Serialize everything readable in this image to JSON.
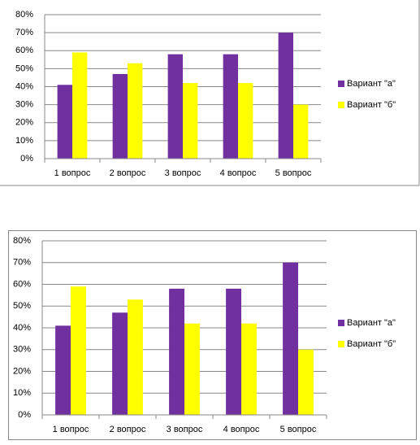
{
  "chart_data": [
    {
      "type": "bar",
      "categories": [
        "1 вопрос",
        "2 вопрос",
        "3 вопрос",
        "4 вопрос",
        "5 вопрос"
      ],
      "series": [
        {
          "name": "Вариант \"а\"",
          "color": "#7030a0",
          "values": [
            41,
            47,
            58,
            58,
            70
          ]
        },
        {
          "name": "Вариант \"б\"",
          "color": "#ffff00",
          "values": [
            59,
            53,
            42,
            42,
            30
          ]
        }
      ],
      "ylim": [
        0,
        80
      ],
      "yticks": [
        {
          "value": 0,
          "label": "0%"
        },
        {
          "value": 10,
          "label": "10%"
        },
        {
          "value": 20,
          "label": "20%"
        },
        {
          "value": 30,
          "label": "30%"
        },
        {
          "value": 40,
          "label": "40%"
        },
        {
          "value": 50,
          "label": "50%"
        },
        {
          "value": 60,
          "label": "60%"
        },
        {
          "value": 70,
          "label": "70%"
        },
        {
          "value": 80,
          "label": "80%"
        }
      ],
      "grid": true,
      "legend": "right"
    },
    {
      "type": "bar",
      "categories": [
        "1 вопрос",
        "2 вопрос",
        "3 вопрос",
        "4 вопрос",
        "5 вопрос"
      ],
      "series": [
        {
          "name": "Вариант \"а\"",
          "color": "#7030a0",
          "values": [
            41,
            47,
            58,
            58,
            70
          ]
        },
        {
          "name": "Вариант \"б\"",
          "color": "#ffff00",
          "values": [
            59,
            53,
            42,
            42,
            30
          ]
        }
      ],
      "ylim": [
        0,
        80
      ],
      "yticks": [
        {
          "value": 0,
          "label": "0%"
        },
        {
          "value": 10,
          "label": "10%"
        },
        {
          "value": 20,
          "label": "20%"
        },
        {
          "value": 30,
          "label": "30%"
        },
        {
          "value": 40,
          "label": "40%"
        },
        {
          "value": 50,
          "label": "50%"
        },
        {
          "value": 60,
          "label": "60%"
        },
        {
          "value": 70,
          "label": "70%"
        },
        {
          "value": 80,
          "label": "80%"
        }
      ],
      "grid": true,
      "legend": "right"
    }
  ]
}
